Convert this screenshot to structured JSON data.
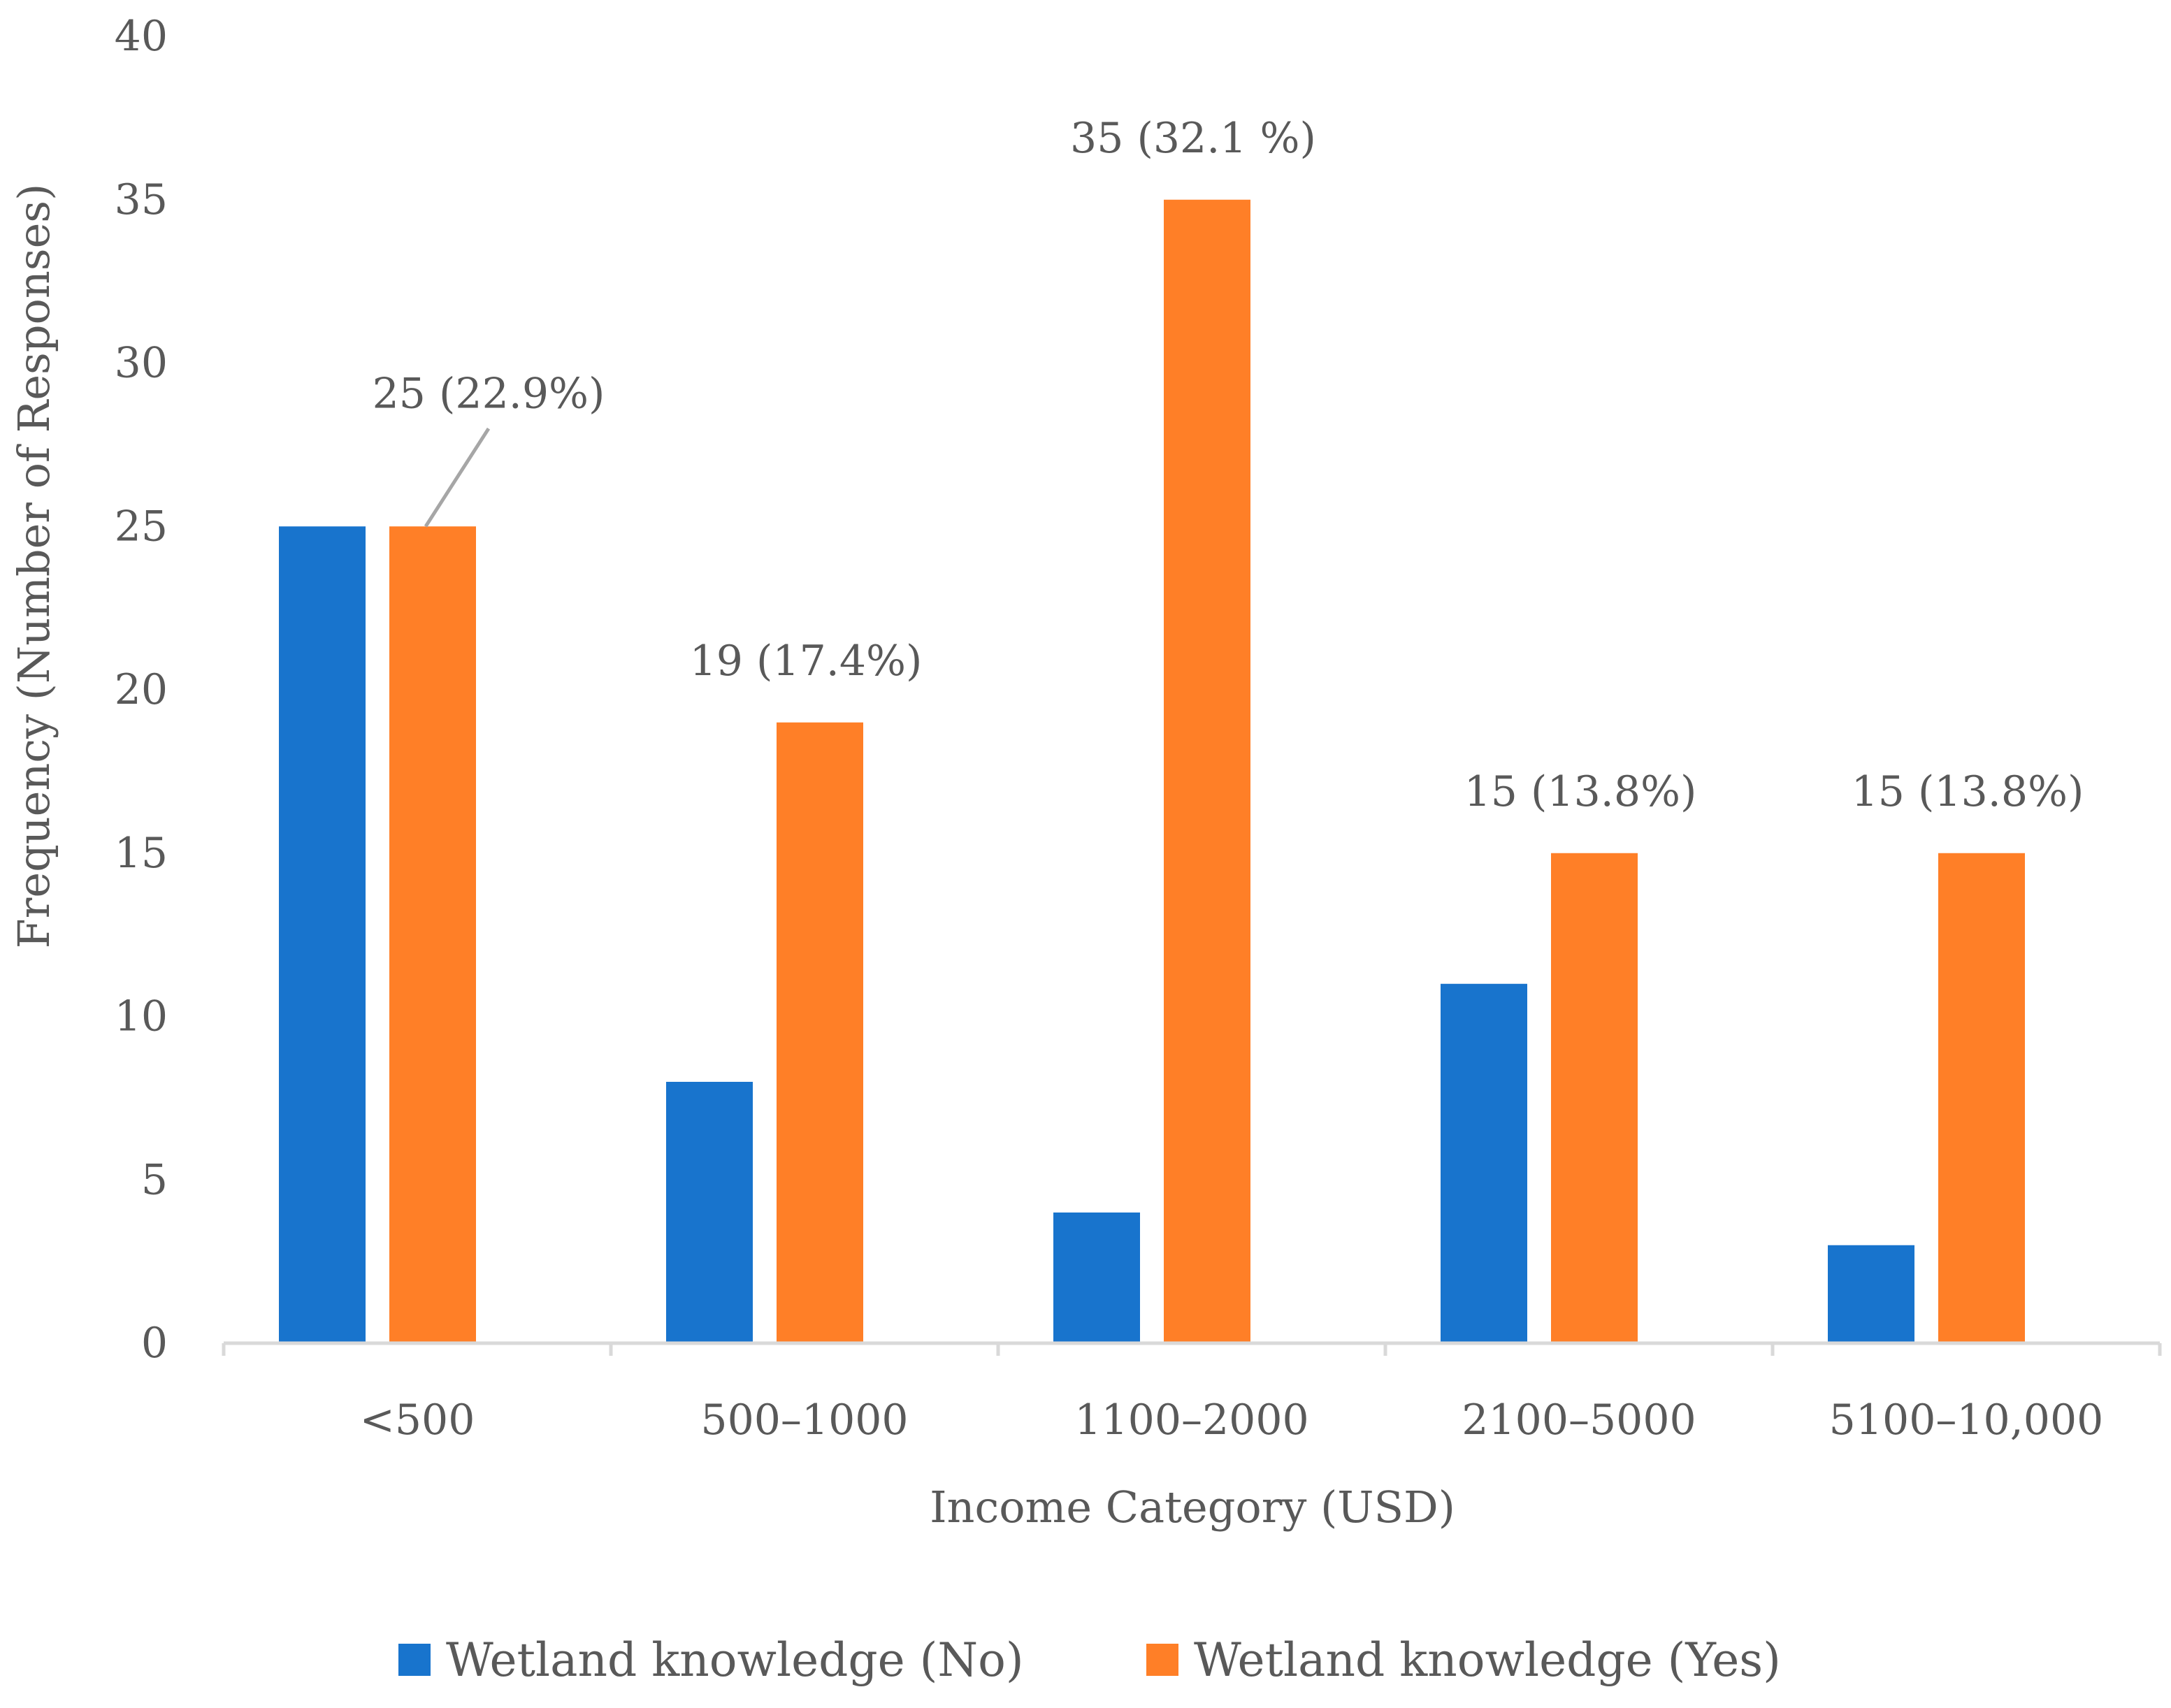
{
  "chart_data": {
    "type": "bar",
    "title": "",
    "xlabel": "Income Category (USD)",
    "ylabel": "Frequency (Number of Responses)",
    "ylim": [
      0,
      40
    ],
    "yticks": [
      0,
      5,
      10,
      15,
      20,
      25,
      30,
      35,
      40
    ],
    "grid": false,
    "legend_position": "bottom",
    "categories": [
      "<500",
      "500–1000",
      "1100–2000",
      "2100–5000",
      "5100–10,000"
    ],
    "series": [
      {
        "name": "Wetland knowledge (No)",
        "color": "#1874cd",
        "values": [
          25,
          8,
          4,
          11,
          3
        ],
        "labels": [
          "",
          "",
          "",
          "",
          ""
        ]
      },
      {
        "name": "Wetland knowledge (Yes)",
        "color": "#ff7f27",
        "values": [
          25,
          19,
          35,
          15,
          15
        ],
        "labels": [
          "25 (22.9%)",
          "19 (17.4%)",
          "35 (32.1 %)",
          "15 (13.8%)",
          "15 (13.8%)"
        ]
      }
    ]
  }
}
